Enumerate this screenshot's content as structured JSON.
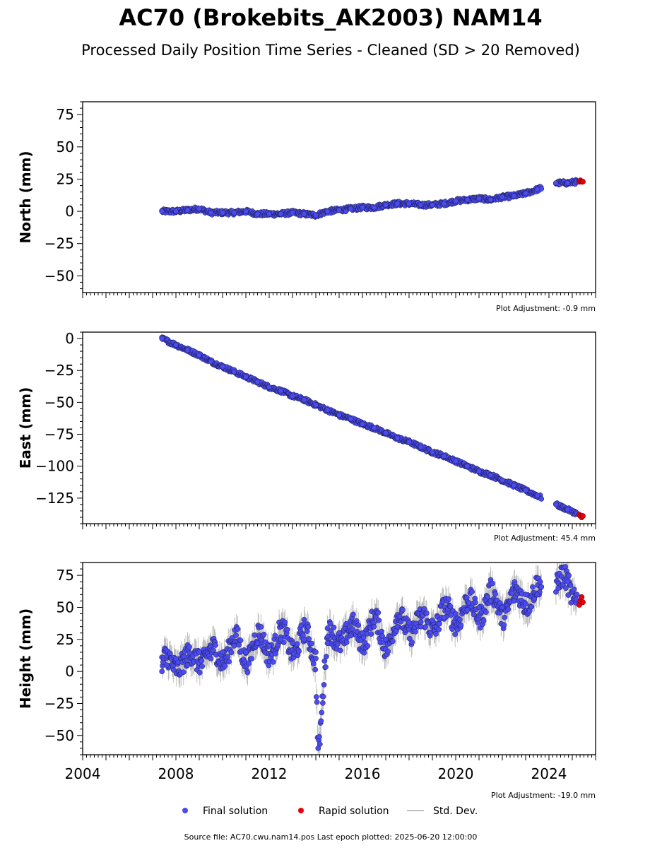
{
  "title": "AC70 (Brokebits_AK2003) NAM14",
  "subtitle": "Processed Daily Position Time Series - Cleaned (SD > 20 Removed)",
  "footer": "Source file: AC70.cwu.nam14.pos  Last epoch plotted: 2025-06-20 12:00:00",
  "colors": {
    "final": "#4b4bf0",
    "rapid": "#e8000b",
    "stddev": "#bdbdbd",
    "axis": "#000000"
  },
  "legend": {
    "placement": "bottom-center",
    "items": [
      {
        "label": "Final solution",
        "type": "marker",
        "color": "#4b4bf0"
      },
      {
        "label": "Rapid solution",
        "type": "marker",
        "color": "#e8000b"
      },
      {
        "label": "Std. Dev.",
        "type": "line",
        "color": "#bdbdbd"
      }
    ]
  },
  "chart_data": [
    {
      "type": "scatter",
      "ylabel": "North (mm)",
      "xlim": [
        2004.0,
        2026.0
      ],
      "ylim": [
        -63,
        85
      ],
      "yticks": [
        -50,
        -25,
        0,
        25,
        50,
        75
      ],
      "xticks": [],
      "adjustment": "Plot Adjustment: -0.9 mm",
      "series": [
        {
          "name": "Final solution",
          "x": [
            2007.4,
            2008.0,
            2008.5,
            2009.0,
            2009.5,
            2010.0,
            2010.5,
            2011.0,
            2011.5,
            2012.0,
            2012.5,
            2013.0,
            2013.5,
            2014.0,
            2014.5,
            2015.0,
            2015.5,
            2016.0,
            2016.5,
            2017.0,
            2017.5,
            2018.0,
            2018.5,
            2019.0,
            2019.5,
            2020.0,
            2020.5,
            2021.0,
            2021.5,
            2022.0,
            2022.5,
            2023.0,
            2023.5,
            2024.3,
            2024.8,
            2025.2
          ],
          "y": [
            0,
            0,
            1,
            2,
            -1,
            -1,
            -1,
            0,
            -2,
            -2,
            -2,
            -1,
            -2,
            -3,
            0,
            1,
            2,
            3,
            3,
            5,
            6,
            6,
            5,
            5,
            6,
            8,
            9,
            10,
            9,
            11,
            12,
            14,
            17,
            22,
            22,
            23
          ]
        },
        {
          "name": "Rapid solution",
          "x": [
            2025.3,
            2025.35,
            2025.4,
            2025.45
          ],
          "y": [
            23,
            24,
            23,
            23
          ]
        }
      ]
    },
    {
      "type": "scatter",
      "ylabel": "East (mm)",
      "xlim": [
        2004.0,
        2026.0
      ],
      "ylim": [
        -145,
        5
      ],
      "yticks": [
        -125,
        -100,
        -75,
        -50,
        -25,
        0
      ],
      "xticks": [],
      "adjustment": "Plot Adjustment: 45.4 mm",
      "series": [
        {
          "name": "Final solution",
          "x": [
            2007.4,
            2008.0,
            2008.5,
            2009.0,
            2009.5,
            2010.0,
            2010.5,
            2011.0,
            2011.5,
            2012.0,
            2012.5,
            2013.0,
            2013.5,
            2014.0,
            2014.5,
            2015.0,
            2015.5,
            2016.0,
            2016.5,
            2017.0,
            2017.5,
            2018.0,
            2018.5,
            2019.0,
            2019.5,
            2020.0,
            2020.5,
            2021.0,
            2021.5,
            2022.0,
            2022.5,
            2023.0,
            2023.5,
            2024.3,
            2024.8,
            2025.2
          ],
          "y": [
            0,
            -5,
            -9,
            -13,
            -18,
            -22,
            -26,
            -30,
            -34,
            -38,
            -41,
            -45,
            -48,
            -52,
            -56,
            -60,
            -63,
            -67,
            -70,
            -74,
            -78,
            -81,
            -85,
            -89,
            -92,
            -96,
            -100,
            -104,
            -107,
            -111,
            -115,
            -119,
            -123,
            -130,
            -134,
            -137
          ]
        },
        {
          "name": "Rapid solution",
          "x": [
            2025.3,
            2025.35,
            2025.4,
            2025.45
          ],
          "y": [
            -138,
            -139,
            -140,
            -139
          ]
        }
      ]
    },
    {
      "type": "scatter",
      "ylabel": "Height (mm)",
      "xlim": [
        2004.0,
        2026.0
      ],
      "ylim": [
        -65,
        85
      ],
      "yticks": [
        -50,
        -25,
        0,
        25,
        50,
        75
      ],
      "xticks": [
        2004,
        2008,
        2012,
        2016,
        2020,
        2024
      ],
      "adjustment": "Plot Adjustment: -19.0 mm",
      "series": [
        {
          "name": "Final solution",
          "x": [
            2007.4,
            2007.6,
            2008.0,
            2008.5,
            2009.0,
            2009.5,
            2010.0,
            2010.5,
            2011.0,
            2011.5,
            2012.0,
            2012.5,
            2013.0,
            2013.5,
            2014.0,
            2014.1,
            2014.5,
            2015.0,
            2015.5,
            2016.0,
            2016.5,
            2017.0,
            2017.5,
            2018.0,
            2018.5,
            2019.0,
            2019.5,
            2020.0,
            2020.5,
            2021.0,
            2021.5,
            2022.0,
            2022.5,
            2023.0,
            2023.5,
            2024.4,
            2024.8,
            2025.2
          ],
          "y": [
            0,
            5,
            10,
            5,
            15,
            10,
            15,
            20,
            15,
            22,
            20,
            25,
            22,
            25,
            15,
            -60,
            22,
            30,
            28,
            30,
            35,
            25,
            35,
            38,
            35,
            40,
            42,
            45,
            48,
            50,
            55,
            50,
            55,
            60,
            60,
            65,
            70,
            60
          ]
        },
        {
          "name": "Rapid solution",
          "x": [
            2025.3,
            2025.35,
            2025.4,
            2025.45
          ],
          "y": [
            52,
            55,
            58,
            54
          ]
        }
      ]
    }
  ]
}
